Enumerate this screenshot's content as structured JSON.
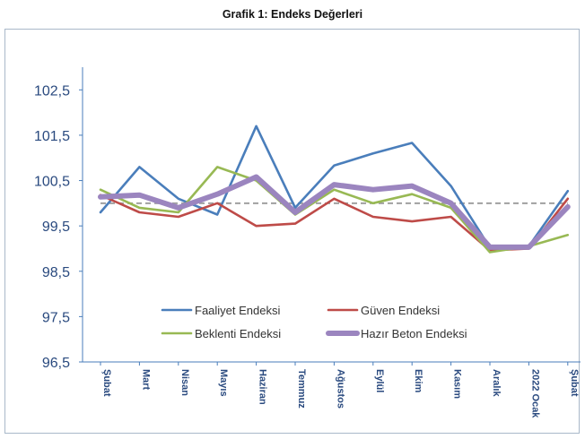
{
  "chart_data": {
    "type": "line",
    "title": "Grafik 1: Endeks Değerleri",
    "xlabel": "",
    "ylabel": "",
    "categories": [
      "Şubat",
      "Mart",
      "Nisan",
      "Mayıs",
      "Haziran",
      "Temmuz",
      "Ağustos",
      "Eylül",
      "Ekim",
      "Kasım",
      "Aralık",
      "2022 Ocak",
      "Şubat"
    ],
    "ylim": [
      96.5,
      103.0
    ],
    "yticks": [
      "96,5",
      "97,5",
      "98,5",
      "99,5",
      "100,5",
      "101,5",
      "102,5"
    ],
    "ytick_values": [
      96.5,
      97.5,
      98.5,
      99.5,
      100.5,
      101.5,
      102.5
    ],
    "reference_line": 100,
    "grid": false,
    "legend_position": "bottom-center",
    "series": [
      {
        "name": "Faaliyet Endeksi",
        "color": "#4a7ebb",
        "width": "thin",
        "values": [
          99.8,
          100.8,
          100.1,
          99.75,
          101.7,
          99.9,
          100.83,
          101.1,
          101.33,
          100.38,
          99.02,
          99.05,
          100.27
        ]
      },
      {
        "name": "Güven Endeksi",
        "color": "#be4b48",
        "width": "thin",
        "values": [
          100.18,
          99.8,
          99.7,
          100.0,
          99.5,
          99.55,
          100.1,
          99.7,
          99.6,
          99.7,
          98.96,
          99.0,
          100.1
        ]
      },
      {
        "name": "Beklenti Endeksi",
        "color": "#98b954",
        "width": "thin",
        "values": [
          100.3,
          99.9,
          99.8,
          100.8,
          100.5,
          99.75,
          100.3,
          100.0,
          100.2,
          99.9,
          98.92,
          99.05,
          99.3
        ]
      },
      {
        "name": "Hazır Beton Endeksi",
        "color": "#9b85bf",
        "width": "thick",
        "values": [
          100.14,
          100.18,
          99.9,
          100.2,
          100.58,
          99.8,
          100.41,
          100.3,
          100.38,
          100.0,
          99.03,
          99.03,
          99.92
        ]
      }
    ]
  }
}
